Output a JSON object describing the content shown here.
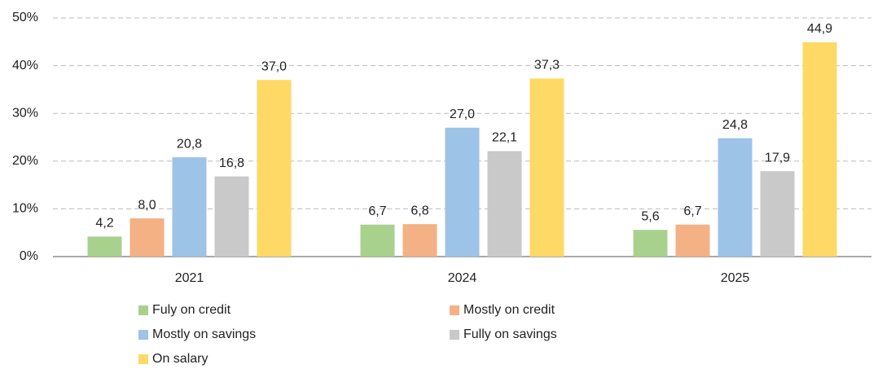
{
  "chart_data": {
    "type": "bar",
    "categories": [
      "2021",
      "2024",
      "2025"
    ],
    "series": [
      {
        "name": "Fuly on credit",
        "color": "#a9d18e",
        "values": [
          4.2,
          6.7,
          5.6
        ],
        "value_labels": [
          "4,2",
          "6,7",
          "5,6"
        ]
      },
      {
        "name": "Mostly on credit",
        "color": "#f4b183",
        "values": [
          8.0,
          6.8,
          6.7
        ],
        "value_labels": [
          "8,0",
          "6,8",
          "6,7"
        ]
      },
      {
        "name": "Mostly on savings",
        "color": "#9dc3e6",
        "values": [
          20.8,
          27.0,
          24.8
        ],
        "value_labels": [
          "20,8",
          "27,0",
          "24,8"
        ]
      },
      {
        "name": "Fully on savings",
        "color": "#c9c9c9",
        "values": [
          16.8,
          22.1,
          17.9
        ],
        "value_labels": [
          "16,8",
          "22,1",
          "17,9"
        ]
      },
      {
        "name": "On salary",
        "color": "#ffd966",
        "values": [
          37.0,
          37.3,
          44.9
        ],
        "value_labels": [
          "37,0",
          "37,3",
          "44,9"
        ]
      }
    ],
    "ylim": [
      0,
      50
    ],
    "yticks": [
      {
        "value": 0,
        "label": "0%"
      },
      {
        "value": 10,
        "label": "10%"
      },
      {
        "value": 20,
        "label": "20%"
      },
      {
        "value": 30,
        "label": "30%"
      },
      {
        "value": 40,
        "label": "40%"
      },
      {
        "value": 50,
        "label": "50%"
      }
    ],
    "grid": true,
    "legend": "bottom"
  }
}
